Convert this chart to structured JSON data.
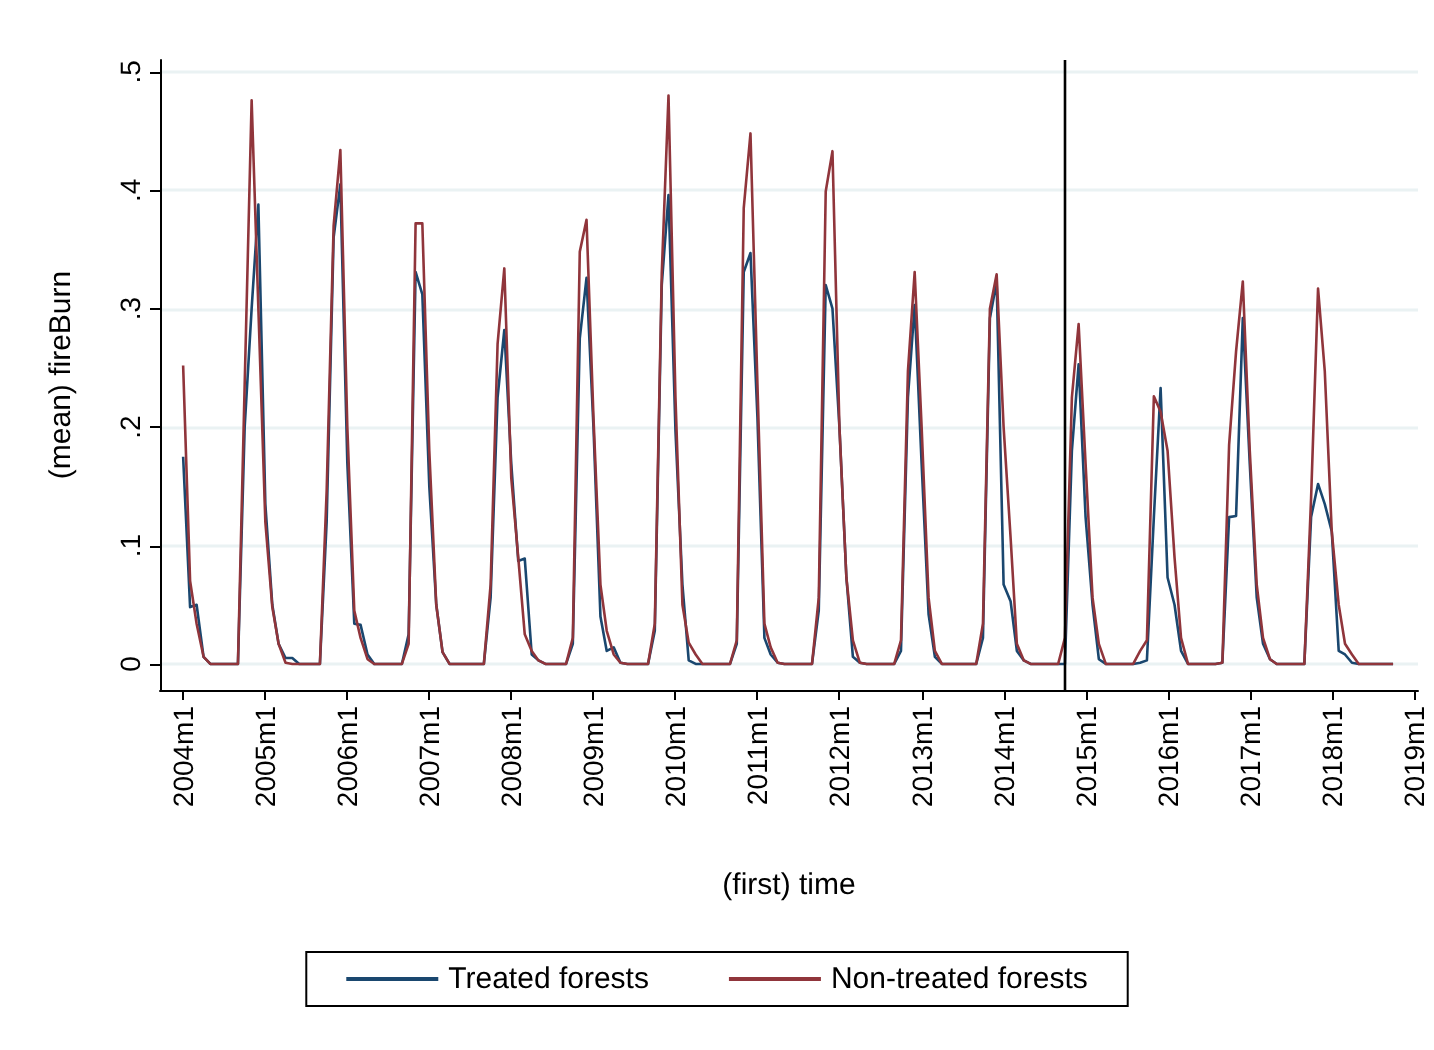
{
  "chart_data": {
    "type": "line",
    "xlabel": "(first) time",
    "ylabel": "(mean) fireBurn",
    "x": [
      "2004-01",
      "2004-02",
      "2004-03",
      "2004-04",
      "2004-05",
      "2004-06",
      "2004-07",
      "2004-08",
      "2004-09",
      "2004-10",
      "2004-11",
      "2004-12",
      "2005-01",
      "2005-02",
      "2005-03",
      "2005-04",
      "2005-05",
      "2005-06",
      "2005-07",
      "2005-08",
      "2005-09",
      "2005-10",
      "2005-11",
      "2005-12",
      "2006-01",
      "2006-02",
      "2006-03",
      "2006-04",
      "2006-05",
      "2006-06",
      "2006-07",
      "2006-08",
      "2006-09",
      "2006-10",
      "2006-11",
      "2006-12",
      "2007-01",
      "2007-02",
      "2007-03",
      "2007-04",
      "2007-05",
      "2007-06",
      "2007-07",
      "2007-08",
      "2007-09",
      "2007-10",
      "2007-11",
      "2007-12",
      "2008-01",
      "2008-02",
      "2008-03",
      "2008-04",
      "2008-05",
      "2008-06",
      "2008-07",
      "2008-08",
      "2008-09",
      "2008-10",
      "2008-11",
      "2008-12",
      "2009-01",
      "2009-02",
      "2009-03",
      "2009-04",
      "2009-05",
      "2009-06",
      "2009-07",
      "2009-08",
      "2009-09",
      "2009-10",
      "2009-11",
      "2009-12",
      "2010-01",
      "2010-02",
      "2010-03",
      "2010-04",
      "2010-05",
      "2010-06",
      "2010-07",
      "2010-08",
      "2010-09",
      "2010-10",
      "2010-11",
      "2010-12",
      "2011-01",
      "2011-02",
      "2011-03",
      "2011-04",
      "2011-05",
      "2011-06",
      "2011-07",
      "2011-08",
      "2011-09",
      "2011-10",
      "2011-11",
      "2011-12",
      "2012-01",
      "2012-02",
      "2012-03",
      "2012-04",
      "2012-05",
      "2012-06",
      "2012-07",
      "2012-08",
      "2012-09",
      "2012-10",
      "2012-11",
      "2012-12",
      "2013-01",
      "2013-02",
      "2013-03",
      "2013-04",
      "2013-05",
      "2013-06",
      "2013-07",
      "2013-08",
      "2013-09",
      "2013-10",
      "2013-11",
      "2013-12",
      "2014-01",
      "2014-02",
      "2014-03",
      "2014-04",
      "2014-05",
      "2014-06",
      "2014-07",
      "2014-08",
      "2014-09",
      "2014-10",
      "2014-11",
      "2014-12",
      "2015-01",
      "2015-02",
      "2015-03",
      "2015-04",
      "2015-05",
      "2015-06",
      "2015-07",
      "2015-08",
      "2015-09",
      "2015-10",
      "2015-11",
      "2015-12",
      "2016-01",
      "2016-02",
      "2016-03",
      "2016-04",
      "2016-05",
      "2016-06",
      "2016-07",
      "2016-08",
      "2016-09",
      "2016-10",
      "2016-11",
      "2016-12",
      "2017-01",
      "2017-02",
      "2017-03",
      "2017-04",
      "2017-05",
      "2017-06",
      "2017-07",
      "2017-08",
      "2017-09",
      "2017-10",
      "2017-11",
      "2017-12",
      "2018-01",
      "2018-02",
      "2018-03",
      "2018-04",
      "2018-05",
      "2018-06",
      "2018-07",
      "2018-08",
      "2018-09",
      "2018-10"
    ],
    "series": [
      {
        "name": "Treated forests",
        "color": "#1a476f",
        "values": [
          0.175,
          0.048,
          0.05,
          0.006,
          0,
          0,
          0,
          0,
          0,
          0.2,
          0.3,
          0.388,
          0.135,
          0.05,
          0.017,
          0.005,
          0.005,
          0,
          0,
          0,
          0,
          0.12,
          0.36,
          0.405,
          0.17,
          0.034,
          0.033,
          0.008,
          0,
          0,
          0,
          0,
          0,
          0.025,
          0.331,
          0.312,
          0.15,
          0.05,
          0.01,
          0,
          0,
          0,
          0,
          0,
          0,
          0.056,
          0.225,
          0.282,
          0.169,
          0.087,
          0.089,
          0.008,
          0.003,
          0,
          0,
          0,
          0,
          0.017,
          0.275,
          0.326,
          0.2,
          0.04,
          0.011,
          0.014,
          0.001,
          0,
          0,
          0,
          0,
          0.028,
          0.32,
          0.396,
          0.197,
          0.067,
          0.003,
          0,
          0,
          0,
          0,
          0,
          0,
          0.017,
          0.331,
          0.347,
          0.208,
          0.022,
          0.008,
          0.001,
          0,
          0,
          0,
          0,
          0,
          0.045,
          0.32,
          0.3,
          0.2,
          0.073,
          0.006,
          0.001,
          0,
          0,
          0,
          0,
          0,
          0.011,
          0.225,
          0.303,
          0.169,
          0.042,
          0.006,
          0,
          0,
          0,
          0,
          0,
          0,
          0.022,
          0.292,
          0.323,
          0.067,
          0.053,
          0.011,
          0.003,
          0,
          0,
          0,
          0,
          0,
          0,
          0.18,
          0.253,
          0.124,
          0.05,
          0.004,
          0,
          0,
          0,
          0,
          0,
          0.001,
          0.003,
          0.124,
          0.233,
          0.073,
          0.05,
          0.011,
          0,
          0,
          0,
          0,
          0,
          0.001,
          0.124,
          0.125,
          0.292,
          0.169,
          0.056,
          0.017,
          0.004,
          0,
          0,
          0,
          0,
          0,
          0.124,
          0.152,
          0.135,
          0.112,
          0.011,
          0.008,
          0.001,
          0,
          0,
          0,
          0,
          0,
          0
        ]
      },
      {
        "name": "Non-treated forests",
        "color": "#90353b",
        "values": [
          0.252,
          0.07,
          0.034,
          0.006,
          0,
          0,
          0,
          0,
          0,
          0.236,
          0.476,
          0.3,
          0.12,
          0.048,
          0.017,
          0.001,
          0,
          0,
          0,
          0,
          0,
          0.146,
          0.37,
          0.434,
          0.2,
          0.045,
          0.022,
          0.004,
          0,
          0,
          0,
          0,
          0,
          0.017,
          0.372,
          0.372,
          0.18,
          0.05,
          0.01,
          0,
          0,
          0,
          0,
          0,
          0,
          0.067,
          0.27,
          0.334,
          0.157,
          0.09,
          0.025,
          0.011,
          0.003,
          0,
          0,
          0,
          0,
          0.022,
          0.348,
          0.375,
          0.208,
          0.067,
          0.028,
          0.008,
          0.001,
          0,
          0,
          0,
          0,
          0.034,
          0.33,
          0.48,
          0.225,
          0.05,
          0.018,
          0.008,
          0,
          0,
          0,
          0,
          0,
          0.02,
          0.385,
          0.448,
          0.236,
          0.034,
          0.014,
          0.001,
          0,
          0,
          0,
          0,
          0,
          0.056,
          0.399,
          0.433,
          0.2,
          0.073,
          0.02,
          0.001,
          0,
          0,
          0,
          0,
          0,
          0.02,
          0.247,
          0.331,
          0.2,
          0.056,
          0.011,
          0,
          0,
          0,
          0,
          0,
          0,
          0.034,
          0.3,
          0.329,
          0.2,
          0.107,
          0.017,
          0.003,
          0,
          0,
          0,
          0,
          0,
          0.022,
          0.225,
          0.287,
          0.169,
          0.056,
          0.017,
          0,
          0,
          0,
          0,
          0,
          0.011,
          0.02,
          0.226,
          0.213,
          0.18,
          0.09,
          0.022,
          0,
          0,
          0,
          0,
          0,
          0.001,
          0.185,
          0.264,
          0.323,
          0.18,
          0.067,
          0.022,
          0.004,
          0,
          0,
          0,
          0,
          0,
          0.14,
          0.317,
          0.247,
          0.112,
          0.05,
          0.017,
          0.008,
          0,
          0,
          0,
          0,
          0,
          0
        ]
      }
    ],
    "xlim": [
      "2003-09-20",
      "2019-01-20"
    ],
    "xticks": [
      {
        "value": "2004-01",
        "label": "2004m1"
      },
      {
        "value": "2005-01",
        "label": "2005m1"
      },
      {
        "value": "2006-01",
        "label": "2006m1"
      },
      {
        "value": "2007-01",
        "label": "2007m1"
      },
      {
        "value": "2008-01",
        "label": "2008m1"
      },
      {
        "value": "2009-01",
        "label": "2009m1"
      },
      {
        "value": "2010-01",
        "label": "2010m1"
      },
      {
        "value": "2011-01",
        "label": "2011m1"
      },
      {
        "value": "2012-01",
        "label": "2012m1"
      },
      {
        "value": "2013-01",
        "label": "2013m1"
      },
      {
        "value": "2014-01",
        "label": "2014m1"
      },
      {
        "value": "2015-01",
        "label": "2015m1"
      },
      {
        "value": "2016-01",
        "label": "2016m1"
      },
      {
        "value": "2017-01",
        "label": "2017m1"
      },
      {
        "value": "2018-01",
        "label": "2018m1"
      },
      {
        "value": "2019-01",
        "label": "2019m1"
      }
    ],
    "ylim": [
      -0.022,
      0.51
    ],
    "yticks": [
      0,
      {
        "value": 0.1,
        "label": ".1"
      },
      {
        "value": 0.2,
        "label": ".2"
      },
      {
        "value": 0.3,
        "label": ".3"
      },
      {
        "value": 0.4,
        "label": ".4"
      },
      {
        "value": 0.5,
        "label": ".5"
      }
    ],
    "ref_lines": [
      {
        "axis": "x",
        "value": "2014-10",
        "color": "#000000"
      }
    ],
    "grid": "y",
    "legend": "bottom",
    "marker": "none",
    "line_style": "solid"
  }
}
